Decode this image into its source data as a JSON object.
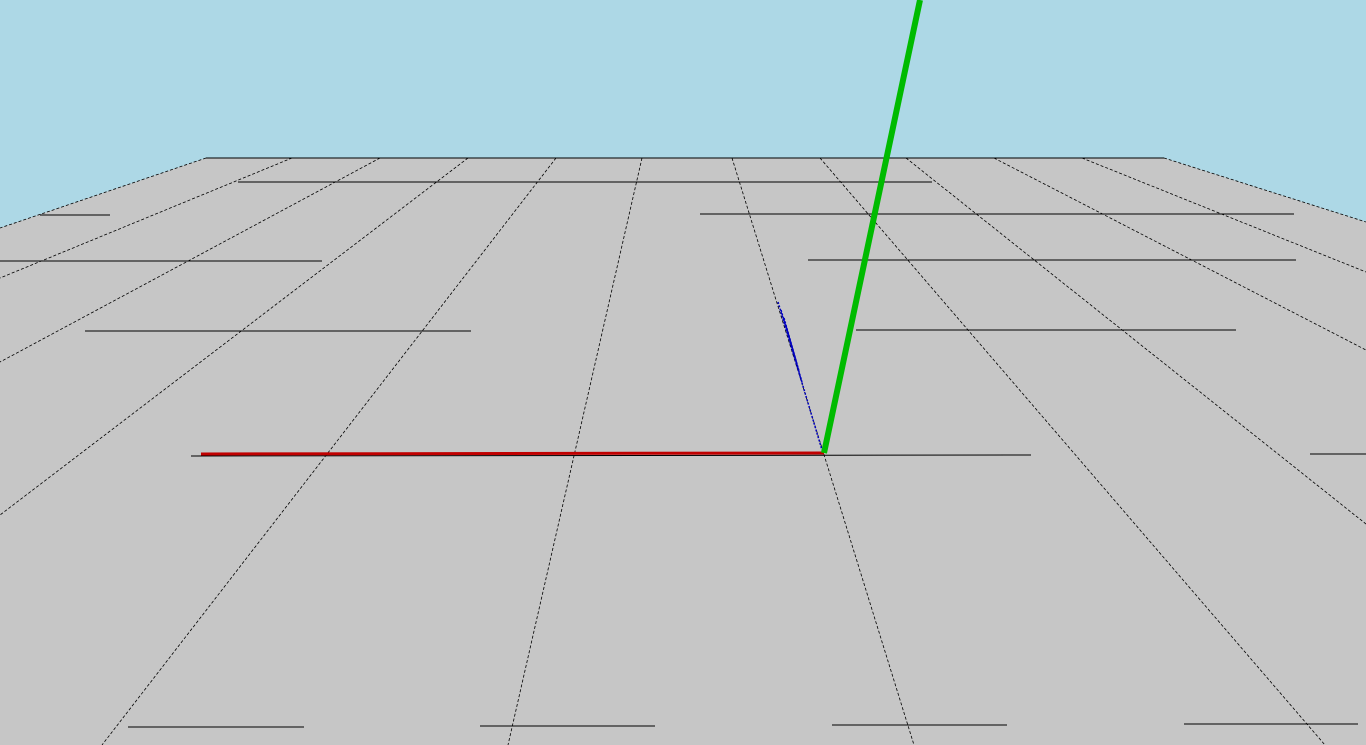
{
  "scene": {
    "sky_color": "#add8e6",
    "ground_color": "#c6c6c6",
    "grid_line_color": "#000000",
    "axes": [
      {
        "name": "x-axis",
        "color": "#c00000"
      },
      {
        "name": "y-axis",
        "color": "#00bb00"
      },
      {
        "name": "z-axis",
        "color": "#0000c0"
      }
    ]
  }
}
